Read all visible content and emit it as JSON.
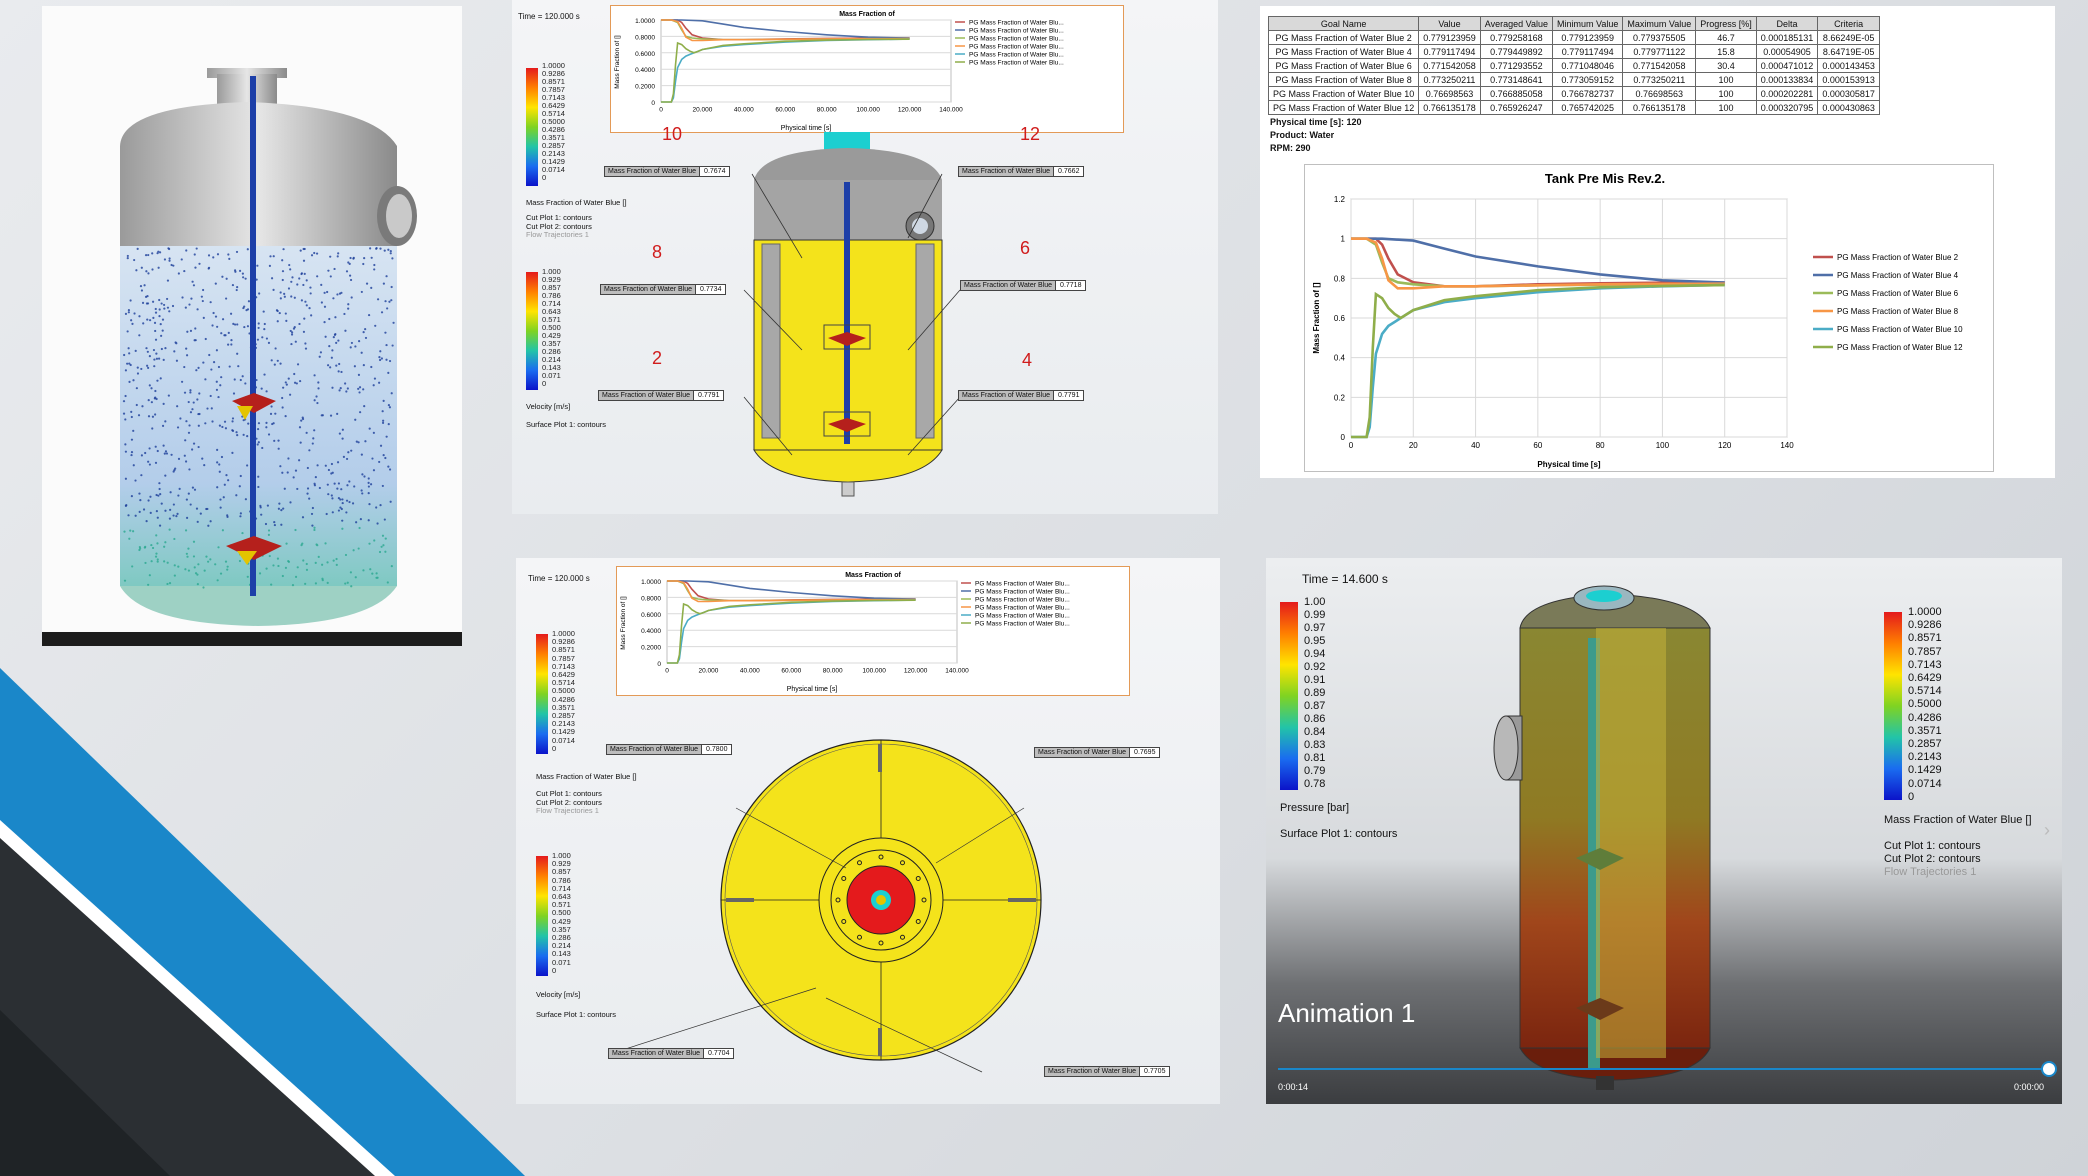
{
  "colors": {
    "accent_blue": "#1a87c9",
    "dark_band": "#2b2f33",
    "mix_yellow": "#f4e31b",
    "chart_border": "#e39a57"
  },
  "panel_top_right": {
    "table": {
      "headers": [
        "Goal Name",
        "Value",
        "Averaged Value",
        "Minimum Value",
        "Maximum Value",
        "Progress [%]",
        "Delta",
        "Criteria"
      ],
      "rows": [
        [
          "PG Mass Fraction of Water Blue 2",
          "0.779123959",
          "0.779258168",
          "0.779123959",
          "0.779375505",
          "46.7",
          "0.000185131",
          "8.66249E-05"
        ],
        [
          "PG Mass Fraction of Water Blue 4",
          "0.779117494",
          "0.779449892",
          "0.779117494",
          "0.779771122",
          "15.8",
          "0.00054905",
          "8.64719E-05"
        ],
        [
          "PG Mass Fraction of Water Blue 6",
          "0.771542058",
          "0.771293552",
          "0.771048046",
          "0.771542058",
          "30.4",
          "0.000471012",
          "0.000143453"
        ],
        [
          "PG Mass Fraction of Water Blue 8",
          "0.773250211",
          "0.773148641",
          "0.773059152",
          "0.773250211",
          "100",
          "0.000133834",
          "0.000153913"
        ],
        [
          "PG Mass Fraction of Water Blue 10",
          "0.76698563",
          "0.766885058",
          "0.766782737",
          "0.76698563",
          "100",
          "0.000202281",
          "0.000305817"
        ],
        [
          "PG Mass Fraction of Water Blue 12",
          "0.766135178",
          "0.765926247",
          "0.765742025",
          "0.766135178",
          "100",
          "0.000320795",
          "0.000430863"
        ]
      ]
    },
    "meta": [
      "Physical time [s]: 120",
      "Product: Water",
      "RPM: 290"
    ]
  },
  "chart_data": [
    {
      "type": "line",
      "title": "Tank  Pre Mis Rev.2.",
      "xlabel": "Physical time [s]",
      "ylabel": "Mass Fraction of []",
      "xlim": [
        0,
        140
      ],
      "ylim": [
        0,
        1.2
      ],
      "xticks": [
        "0",
        "20",
        "40",
        "60",
        "80",
        "100",
        "120",
        "140"
      ],
      "yticks": [
        "0",
        "0.2",
        "0.4",
        "0.6",
        "0.8",
        "1",
        "1.2"
      ],
      "grid": true,
      "legend": "right",
      "series": [
        {
          "name": "PG Mass Fraction of Water Blue 2",
          "color": "#c0504d",
          "x": [
            0,
            5,
            8,
            10,
            12,
            15,
            20,
            30,
            40,
            60,
            80,
            100,
            120
          ],
          "y": [
            1,
            1,
            1,
            0.97,
            0.9,
            0.82,
            0.78,
            0.76,
            0.76,
            0.77,
            0.775,
            0.778,
            0.779
          ]
        },
        {
          "name": "PG Mass Fraction of Water Blue 4",
          "color": "#4f6fa8",
          "x": [
            0,
            10,
            20,
            30,
            40,
            60,
            80,
            100,
            120
          ],
          "y": [
            1,
            1,
            0.99,
            0.95,
            0.91,
            0.86,
            0.82,
            0.79,
            0.779
          ]
        },
        {
          "name": "PG Mass Fraction of Water Blue 6",
          "color": "#9bbb59",
          "x": [
            0,
            5,
            8,
            10,
            12,
            15,
            20,
            30,
            40,
            60,
            80,
            100,
            120
          ],
          "y": [
            1,
            1,
            0.97,
            0.88,
            0.8,
            0.78,
            0.77,
            0.76,
            0.76,
            0.765,
            0.768,
            0.77,
            0.772
          ]
        },
        {
          "name": "PG Mass Fraction of Water Blue 8",
          "color": "#f79646",
          "x": [
            0,
            5,
            8,
            10,
            12,
            15,
            20,
            30,
            40,
            60,
            80,
            100,
            120
          ],
          "y": [
            1,
            1,
            0.98,
            0.9,
            0.79,
            0.75,
            0.75,
            0.76,
            0.76,
            0.765,
            0.77,
            0.772,
            0.773
          ]
        },
        {
          "name": "PG Mass Fraction of Water Blue 10",
          "color": "#4bacc6",
          "x": [
            0,
            5,
            6,
            7,
            8,
            10,
            12,
            14,
            16,
            18,
            20,
            30,
            40,
            60,
            80,
            100,
            120
          ],
          "y": [
            0,
            0,
            0.05,
            0.25,
            0.42,
            0.52,
            0.56,
            0.58,
            0.6,
            0.62,
            0.64,
            0.68,
            0.7,
            0.73,
            0.75,
            0.76,
            0.767
          ]
        },
        {
          "name": "PG Mass Fraction of Water Blue 12",
          "color": "#8fae4a",
          "x": [
            0,
            5,
            6,
            7,
            8,
            10,
            12,
            14,
            16,
            18,
            20,
            30,
            40,
            60,
            80,
            100,
            120
          ],
          "y": [
            0,
            0,
            0.1,
            0.45,
            0.72,
            0.7,
            0.65,
            0.62,
            0.6,
            0.62,
            0.64,
            0.69,
            0.71,
            0.74,
            0.755,
            0.762,
            0.766
          ]
        }
      ]
    }
  ],
  "mini_chart": {
    "title": "Mass Fraction of",
    "xlabel": "Physical time [s]",
    "ylabel": "Mass Fraction of []",
    "yticks": [
      "0",
      "0.2000",
      "0.4000",
      "0.6000",
      "0.8000",
      "1.0000"
    ],
    "xticks": [
      "0",
      "20.000",
      "40.000",
      "60.000",
      "80.000",
      "100.000",
      "120.000",
      "140.000"
    ],
    "legend": [
      "PG Mass Fraction of Water Blu...",
      "PG Mass Fraction of Water Blu...",
      "PG Mass Fraction of Water Blu...",
      "PG Mass Fraction of Water Blu...",
      "PG Mass Fraction of Water Blu...",
      "PG Mass Fraction of Water Blu..."
    ]
  },
  "panel_top_mid": {
    "time": "Time = 120.000 s",
    "scale1": [
      "1.0000",
      "0.9286",
      "0.8571",
      "0.7857",
      "0.7143",
      "0.6429",
      "0.5714",
      "0.5000",
      "0.4286",
      "0.3571",
      "0.2857",
      "0.2143",
      "0.1429",
      "0.0714",
      "0"
    ],
    "scale1_title": "Mass Fraction of Water Blue []",
    "cut_plots": [
      "Cut Plot 1: contours",
      "Cut Plot 2: contours",
      "Flow Trajectories 1"
    ],
    "scale2": [
      "1.000",
      "0.929",
      "0.857",
      "0.786",
      "0.714",
      "0.643",
      "0.571",
      "0.500",
      "0.429",
      "0.357",
      "0.286",
      "0.214",
      "0.143",
      "0.071",
      "0"
    ],
    "scale2_title": "Velocity [m/s]",
    "surface_plot": "Surface Plot 1: contours",
    "probe_label": "Mass Fraction of Water Blue",
    "probes": [
      "0.7674",
      "0.7662",
      "0.7734",
      "0.7718",
      "0.7791",
      "0.7791"
    ],
    "numbers": [
      "10",
      "12",
      "8",
      "6",
      "2",
      "4"
    ]
  },
  "panel_bottom_mid": {
    "time": "Time = 120.000 s",
    "scale1": [
      "1.0000",
      "0.9286",
      "0.8571",
      "0.7857",
      "0.7143",
      "0.6429",
      "0.5714",
      "0.5000",
      "0.4286",
      "0.3571",
      "0.2857",
      "0.2143",
      "0.1429",
      "0.0714",
      "0"
    ],
    "scale1_title": "Mass Fraction of Water Blue []",
    "cut_plots": [
      "Cut Plot 1: contours",
      "Cut Plot 2: contours",
      "Flow Trajectories 1"
    ],
    "scale2": [
      "1.000",
      "0.929",
      "0.857",
      "0.786",
      "0.714",
      "0.643",
      "0.571",
      "0.500",
      "0.429",
      "0.357",
      "0.286",
      "0.214",
      "0.143",
      "0.071",
      "0"
    ],
    "scale2_title": "Velocity [m/s]",
    "surface_plot": "Surface Plot 1: contours",
    "probe_label": "Mass Fraction of Water Blue",
    "probes": [
      "0.7800",
      "0.7695",
      "0.7704",
      "0.7705"
    ]
  },
  "panel_bottom_right": {
    "time": "Time = 14.600 s",
    "pressure_scale": [
      "1.00",
      "0.99",
      "0.97",
      "0.95",
      "0.94",
      "0.92",
      "0.91",
      "0.89",
      "0.87",
      "0.86",
      "0.84",
      "0.83",
      "0.81",
      "0.79",
      "0.78"
    ],
    "pressure_title": "Pressure [bar]",
    "surface_plot": "Surface Plot 1: contours",
    "mf_scale": [
      "1.0000",
      "0.9286",
      "0.8571",
      "0.7857",
      "0.7143",
      "0.6429",
      "0.5714",
      "0.5000",
      "0.4286",
      "0.3571",
      "0.2857",
      "0.2143",
      "0.1429",
      "0.0714",
      "0"
    ],
    "mf_title": "Mass Fraction of Water Blue []",
    "cut_plots": [
      "Cut Plot 1: contours",
      "Cut Plot 2: contours",
      "Flow Trajectories 1"
    ],
    "animation_title": "Animation 1",
    "time_start": "0:00:14",
    "time_end": "0:00:00",
    "progress": 1.0
  }
}
